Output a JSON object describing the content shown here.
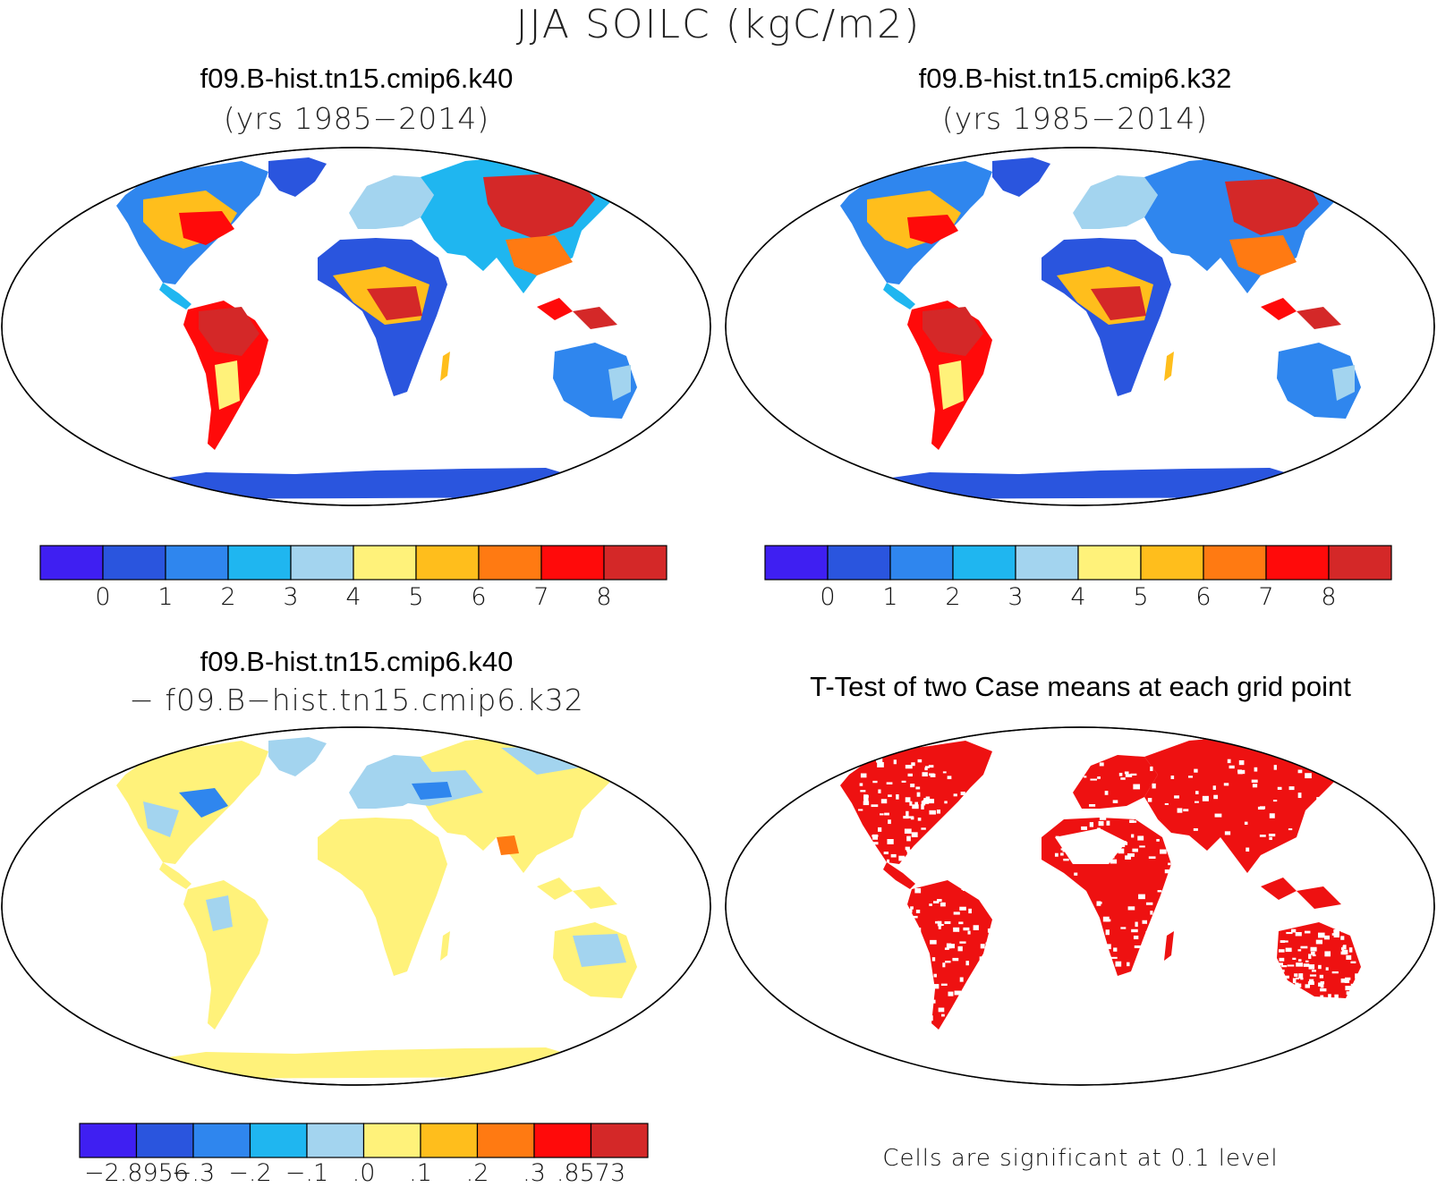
{
  "figure": {
    "title": "JJA SOILC (kgC/m2)"
  },
  "panels": [
    {
      "id": "case1",
      "title": "f09.B-hist.tn15.cmip6.k40",
      "subtitle": "(yrs 1985−2014)",
      "map_type": "filled contour",
      "projection": "Robinson"
    },
    {
      "id": "case2",
      "title": "f09.B-hist.tn15.cmip6.k32",
      "subtitle": "(yrs 1985−2014)",
      "map_type": "filled contour",
      "projection": "Robinson"
    },
    {
      "id": "difference",
      "title": "f09.B-hist.tn15.cmip6.k40",
      "subtitle": "− f09.B−hist.tn15.cmip6.k32",
      "map_type": "filled contour",
      "projection": "Robinson"
    },
    {
      "id": "ttest",
      "title": "T-Test of two Case means at each grid point",
      "map_type": "significance mask",
      "significance_color": "#ee1111",
      "note": "Cells are significant at 0.1 level",
      "projection": "Robinson"
    }
  ],
  "colorbars": {
    "case": {
      "colors": [
        "#3f1ff2",
        "#2a55de",
        "#2f86ee",
        "#1fb6f0",
        "#a3d4ef",
        "#fff27a",
        "#ffbe1c",
        "#ff7a12",
        "#ff0a0a",
        "#d42828"
      ],
      "labels": [
        "0",
        "1",
        "2",
        "3",
        "4",
        "5",
        "6",
        "7",
        "8"
      ]
    },
    "diff": {
      "colors": [
        "#3f1ff2",
        "#2a55de",
        "#2f86ee",
        "#1fb6f0",
        "#a3d4ef",
        "#fff27a",
        "#ffbe1c",
        "#ff7a12",
        "#ff0a0a",
        "#d42828"
      ],
      "labels": [
        "−2.8956",
        "−.3",
        "−.2",
        "−.1",
        ".0",
        ".1",
        ".2",
        ".3",
        ".8573"
      ]
    }
  }
}
